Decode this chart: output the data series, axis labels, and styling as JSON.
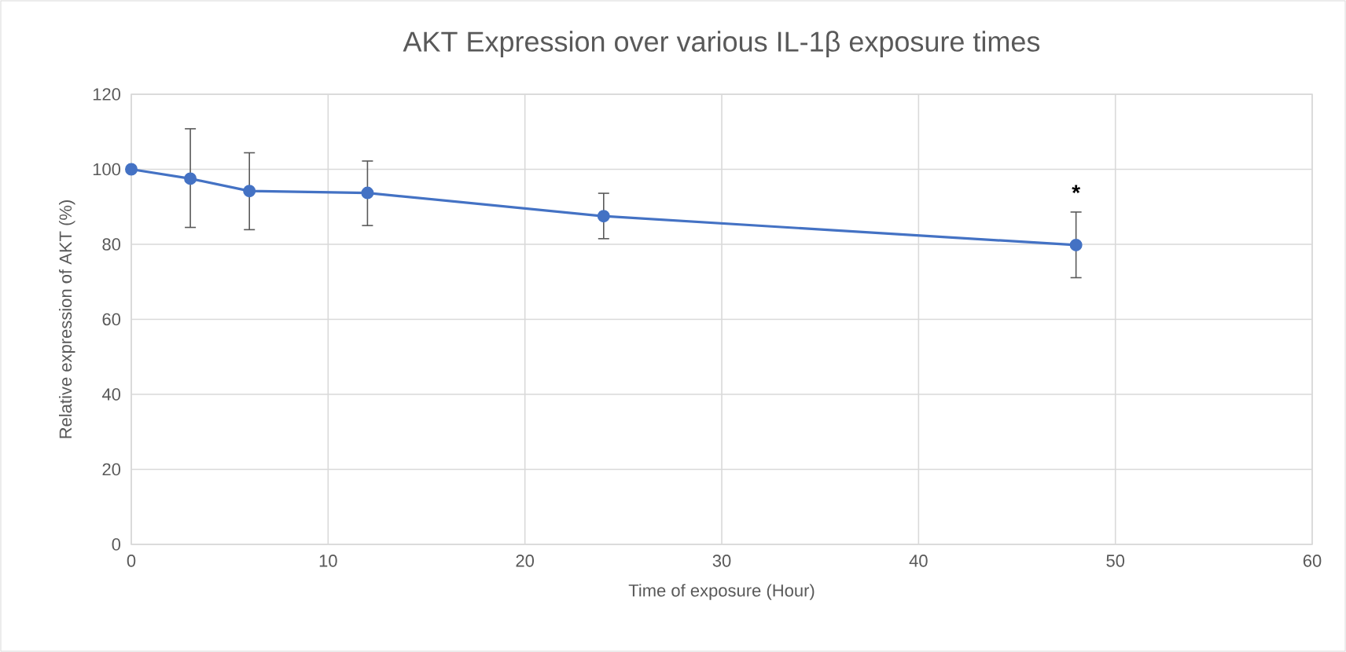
{
  "chart_data": {
    "type": "line",
    "title": "AKT Expression over various IL-1β exposure times",
    "xlabel": "Time of exposure (Hour)",
    "ylabel": "Relative expression of AKT (%)",
    "x": [
      0,
      3,
      6,
      12,
      24,
      48
    ],
    "series": [
      {
        "color": "#4472c4",
        "values": [
          100,
          97.5,
          94.2,
          93.7,
          87.5,
          79.8
        ],
        "errors": [
          null,
          [
            84.5,
            110.8
          ],
          [
            83.9,
            104.4
          ],
          [
            85.0,
            102.2
          ],
          [
            81.5,
            93.6
          ],
          [
            71.1,
            88.6
          ]
        ]
      }
    ],
    "xlim": [
      0,
      60
    ],
    "xticks": [
      0,
      10,
      20,
      30,
      40,
      50,
      60
    ],
    "ylim": [
      0,
      120
    ],
    "yticks": [
      0,
      20,
      40,
      60,
      80,
      100,
      120
    ],
    "grid": true,
    "marker": "circle",
    "line_style": "solid",
    "annotations": [
      {
        "text": "*",
        "x": 48,
        "y": 88.6
      }
    ]
  }
}
